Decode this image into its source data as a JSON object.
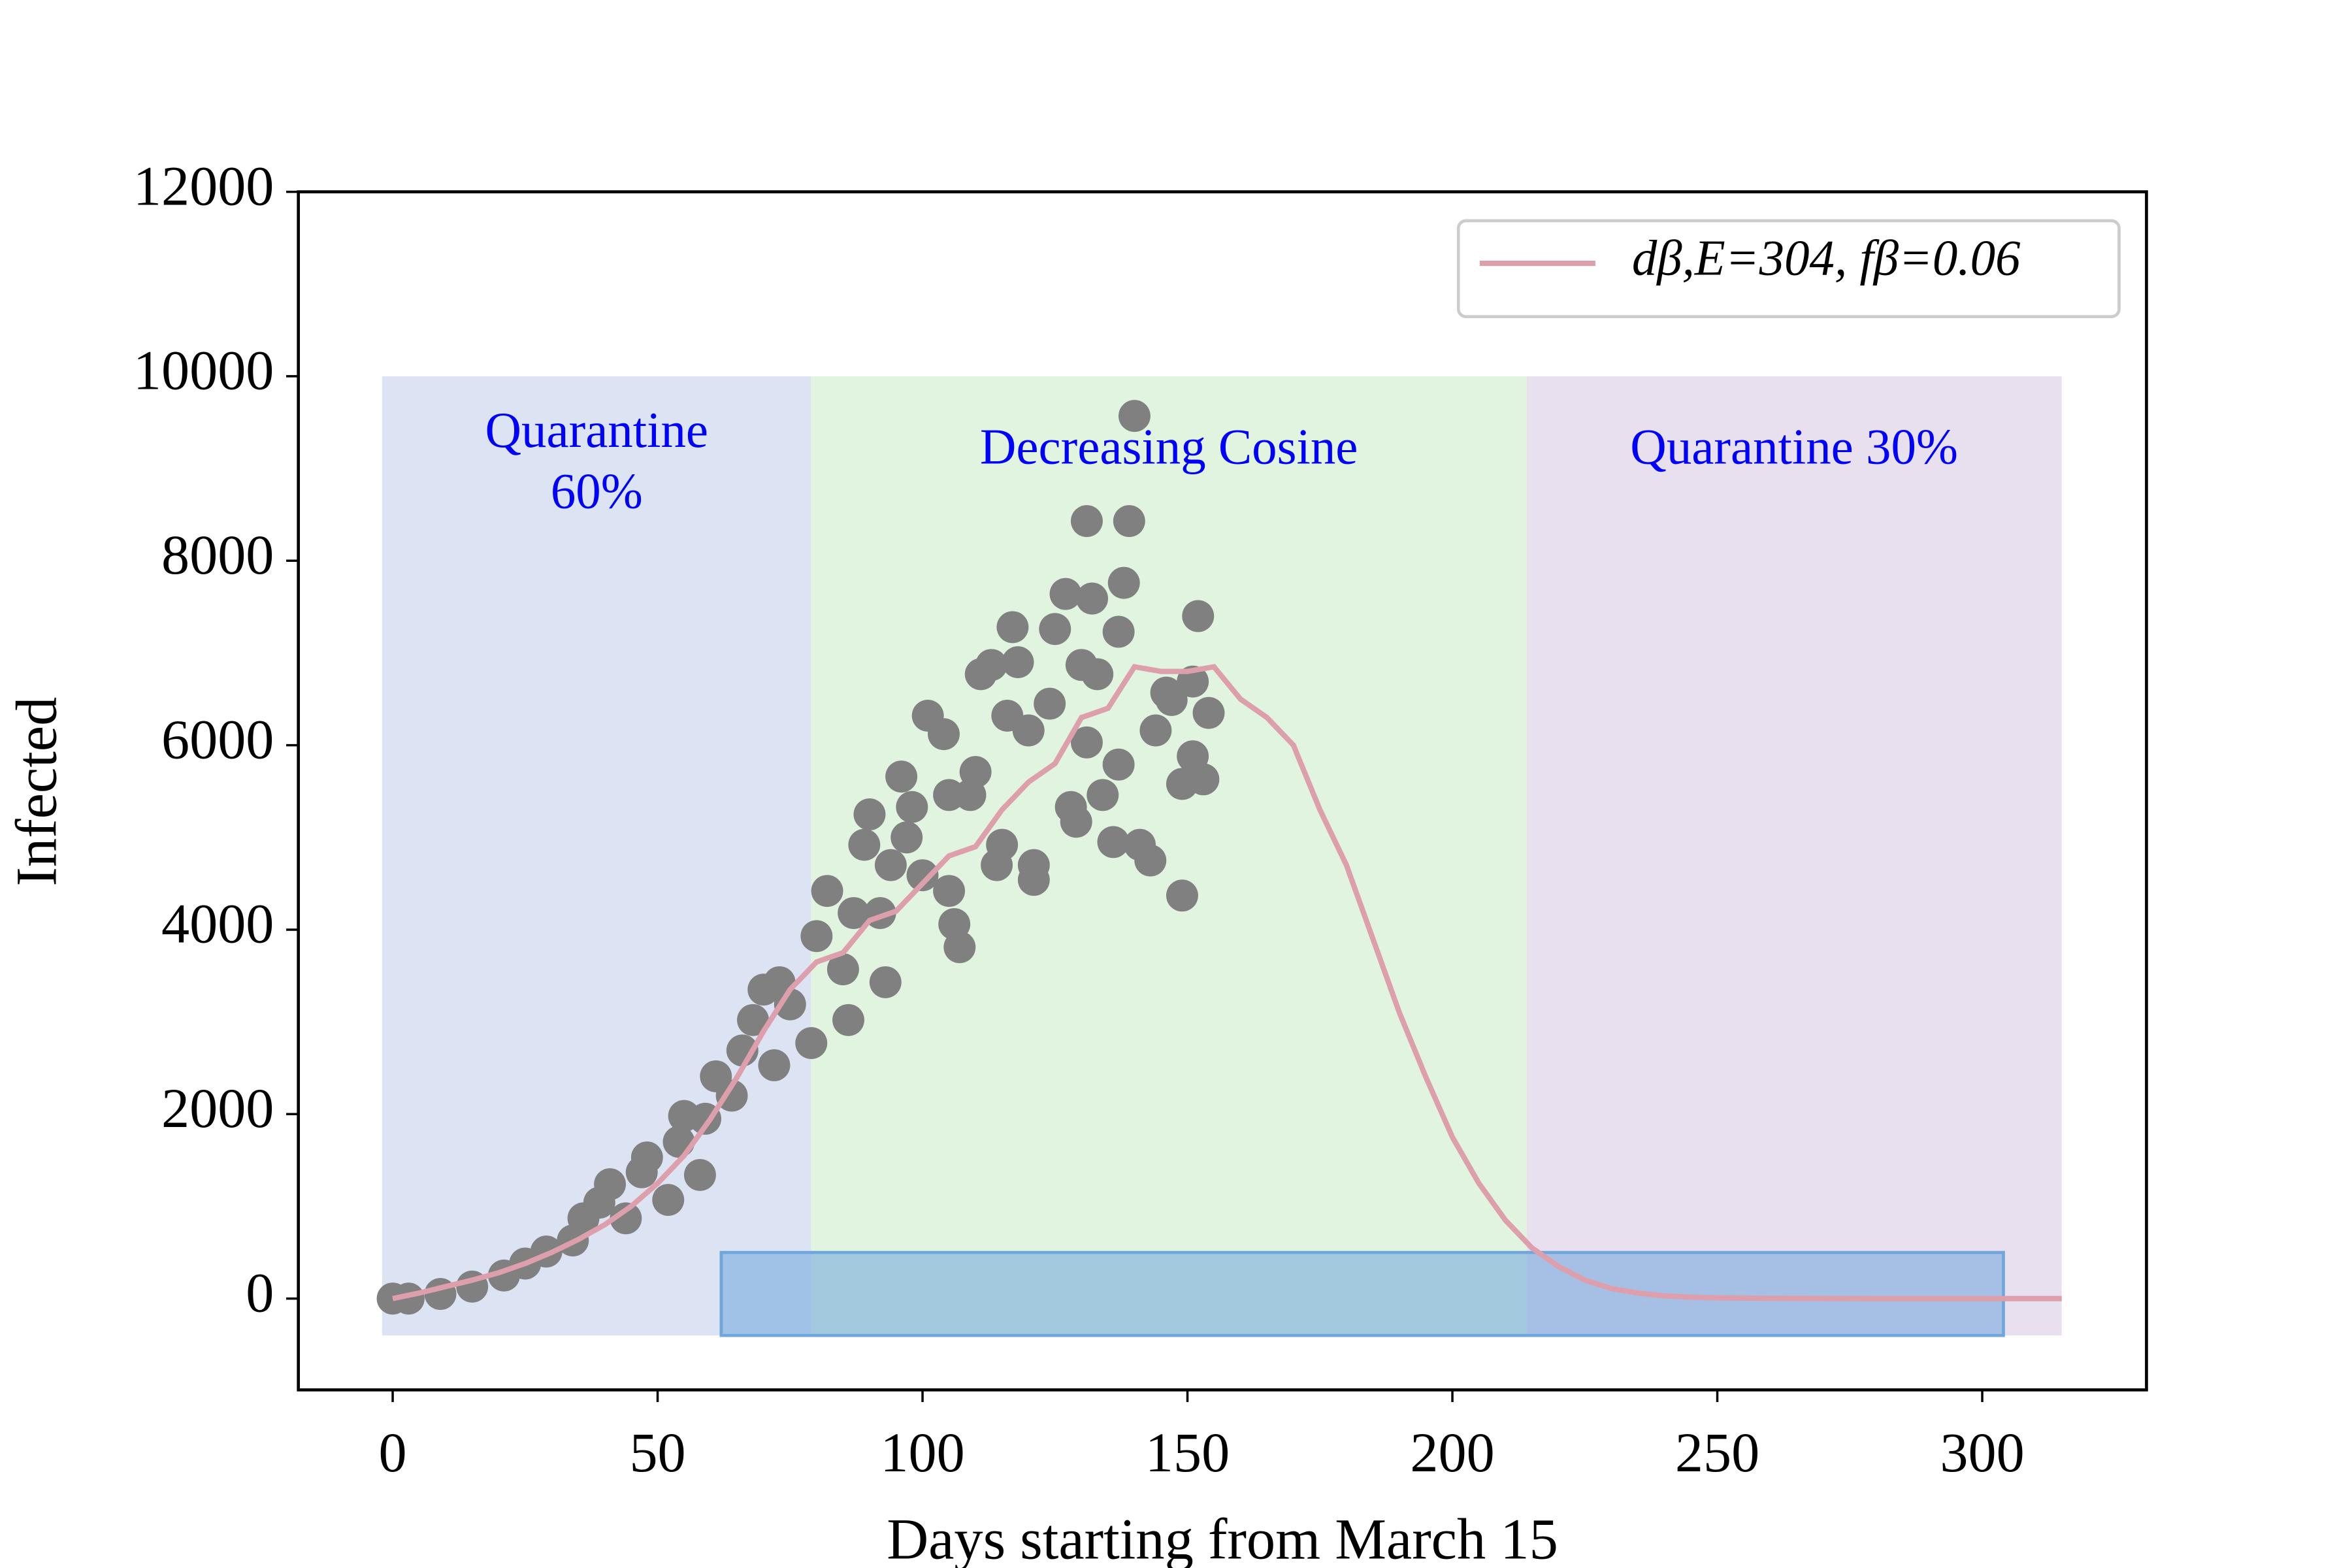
{
  "chart_data": {
    "type": "scatter_line",
    "xlabel": "Days starting from March 15",
    "ylabel": "Infected",
    "xlim": [
      -17.8,
      331
    ],
    "ylim": [
      -990,
      12000
    ],
    "xticks": [
      0,
      50,
      100,
      150,
      200,
      250,
      300
    ],
    "yticks": [
      0,
      2000,
      4000,
      6000,
      8000,
      10000,
      12000
    ],
    "regions": [
      {
        "label": [
          "Quarantine",
          "60%"
        ],
        "x": [
          -2,
          79
        ],
        "y": [
          -400,
          10000
        ],
        "color": "#dce4f4",
        "text_color": "#0000ff"
      },
      {
        "label": [
          "Decreasing Cosine"
        ],
        "x": [
          79,
          214
        ],
        "y": [
          -400,
          10000
        ],
        "color": "#e1f4e0",
        "text_color": "#0000ff"
      },
      {
        "label": [
          "Quarantine 30%"
        ],
        "x": [
          214,
          315
        ],
        "y": [
          -400,
          10000
        ],
        "color": "#e8e0ef",
        "text_color": "#0000ff"
      }
    ],
    "band": {
      "x": [
        62,
        304
      ],
      "y": [
        -400,
        500
      ],
      "color": "#6fa6dc"
    },
    "scatter": {
      "color": "#808080",
      "x": [
        0,
        3,
        9,
        15,
        21,
        25,
        29,
        34,
        36,
        39,
        41,
        44,
        47,
        48,
        52,
        54,
        55,
        58,
        59,
        61,
        64,
        66,
        68,
        70,
        72,
        73,
        75,
        79,
        80,
        82,
        85,
        86,
        87,
        89,
        90,
        92,
        93,
        94,
        96,
        97,
        98,
        100,
        101,
        104,
        105,
        105,
        106,
        107,
        109,
        110,
        111,
        113,
        114,
        115,
        116,
        117,
        118,
        120,
        121,
        121,
        124,
        125,
        127,
        128,
        129,
        130,
        131,
        131,
        132,
        133,
        134,
        136,
        137,
        137,
        138,
        139,
        140,
        141,
        143,
        144,
        146,
        147,
        149,
        149,
        151,
        151,
        152,
        153,
        154
      ],
      "values": [
        0,
        0,
        50,
        130,
        250,
        380,
        510,
        630,
        870,
        1040,
        1240,
        870,
        1370,
        1530,
        1070,
        1700,
        1980,
        1340,
        1950,
        2410,
        2200,
        2690,
        3020,
        3350,
        2530,
        3430,
        3190,
        2770,
        3930,
        4420,
        3570,
        3020,
        4180,
        4920,
        5250,
        4180,
        3430,
        4700,
        5660,
        5000,
        5330,
        4590,
        6320,
        6120,
        5460,
        4420,
        4060,
        3810,
        5460,
        5710,
        6770,
        6870,
        4700,
        4920,
        6320,
        7280,
        6900,
        6160,
        4700,
        4540,
        6450,
        7260,
        7640,
        5330,
        5170,
        6870,
        6030,
        8430,
        7590,
        6770,
        5460,
        4950,
        7230,
        5790,
        7760,
        8430,
        9570,
        4920,
        4750,
        6160,
        6570,
        6490,
        4370,
        5580,
        6690,
        5880,
        7400,
        5630,
        6350
      ]
    },
    "series": [
      {
        "name": "dβ,E=304, fβ=0.06",
        "color": "#dc9fab",
        "x": [
          0,
          5,
          10,
          15,
          20,
          25,
          30,
          35,
          40,
          45,
          50,
          55,
          60,
          65,
          70,
          75,
          80,
          85,
          90,
          95,
          100,
          105,
          110,
          115,
          120,
          125,
          130,
          135,
          140,
          145,
          150,
          155,
          160,
          165,
          170,
          175,
          180,
          185,
          190,
          195,
          200,
          205,
          210,
          215,
          220,
          225,
          230,
          235,
          240,
          245,
          250,
          260,
          270,
          280,
          300,
          315
        ],
        "values": [
          0,
          60,
          130,
          200,
          280,
          380,
          500,
          640,
          800,
          1000,
          1250,
          1550,
          1950,
          2400,
          2900,
          3350,
          3650,
          3750,
          4100,
          4200,
          4500,
          4800,
          4900,
          5300,
          5600,
          5800,
          6300,
          6400,
          6850,
          6800,
          6800,
          6850,
          6500,
          6300,
          6000,
          5300,
          4700,
          3900,
          3100,
          2400,
          1750,
          1250,
          850,
          550,
          350,
          200,
          110,
          60,
          30,
          15,
          8,
          3,
          1,
          0,
          0,
          0
        ]
      }
    ],
    "legend": "upper right"
  }
}
